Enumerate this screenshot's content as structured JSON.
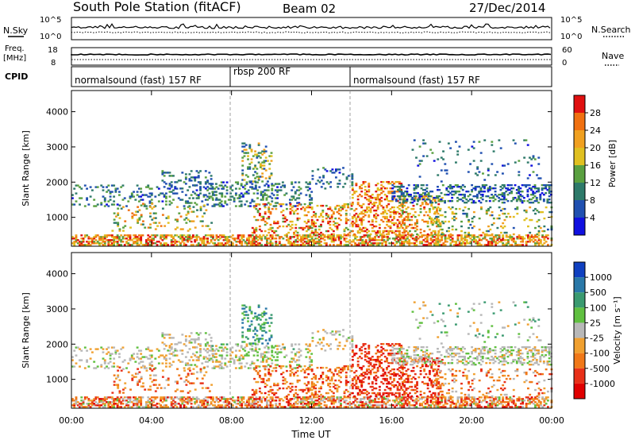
{
  "header": {
    "station": "South Pole Station (fitACF)",
    "beam": "Beam 02",
    "date": "27/Dec/2014"
  },
  "top_panels": {
    "nsky_label": "N.Sky",
    "nsky_ticks": [
      "10^5",
      "10^0"
    ],
    "nsearch_label": "N.Search",
    "nsearch_ticks": [
      "10^5",
      "10^0"
    ],
    "freq_label_1": "Freq.",
    "freq_label_2": "[MHz]",
    "freq_ticks": [
      "18",
      "8"
    ],
    "nave_label": "Nave",
    "nave_ticks": [
      "60",
      "0"
    ],
    "cpid_label": "CPID",
    "cpid_segments": [
      {
        "label": "normalsound (fast) 157 RF",
        "start": "00:00",
        "end": "08:00"
      },
      {
        "label": "rbsp 200 RF",
        "start": "08:00",
        "end": "14:00"
      },
      {
        "label": "normalsound (fast) 157 RF",
        "start": "14:00",
        "end": "24:00"
      }
    ]
  },
  "chart_data": [
    {
      "type": "heatmap",
      "title": "",
      "ylabel": "Slant Range [km]",
      "xlabel": "",
      "x_ticks": [
        "00:00",
        "04:00",
        "08:00",
        "12:00",
        "16:00",
        "20:00",
        "00:00"
      ],
      "y_ticks": [
        "1000",
        "2000",
        "3000",
        "4000"
      ],
      "xlim_hours": [
        0,
        24
      ],
      "ylim_km": [
        180,
        4600
      ],
      "colorbar": {
        "label": "Power [dB]",
        "ticks": [
          "4",
          "8",
          "12",
          "16",
          "20",
          "24",
          "28"
        ],
        "range": [
          0,
          30
        ],
        "colors": [
          "#1010e0",
          "#2050b0",
          "#2e7a6a",
          "#5aa040",
          "#e0c020",
          "#f0a020",
          "#f07010",
          "#e01010"
        ]
      }
    },
    {
      "type": "heatmap",
      "title": "",
      "ylabel": "Slant Range [km]",
      "xlabel": "Time UT",
      "x_ticks": [
        "00:00",
        "04:00",
        "08:00",
        "12:00",
        "16:00",
        "20:00",
        "00:00"
      ],
      "y_ticks": [
        "1000",
        "2000",
        "3000",
        "4000"
      ],
      "xlim_hours": [
        0,
        24
      ],
      "ylim_km": [
        180,
        4600
      ],
      "colorbar": {
        "label": "Velocity [m s⁻¹]",
        "ticks": [
          "1000",
          "500",
          "100",
          "25",
          "-25",
          "-100",
          "-500",
          "-1000"
        ],
        "colors": [
          "#1040c0",
          "#2a78a8",
          "#3a9a70",
          "#60c040",
          "#b8b8b8",
          "#f0a030",
          "#f07818",
          "#e83018",
          "#e00000"
        ]
      }
    }
  ]
}
